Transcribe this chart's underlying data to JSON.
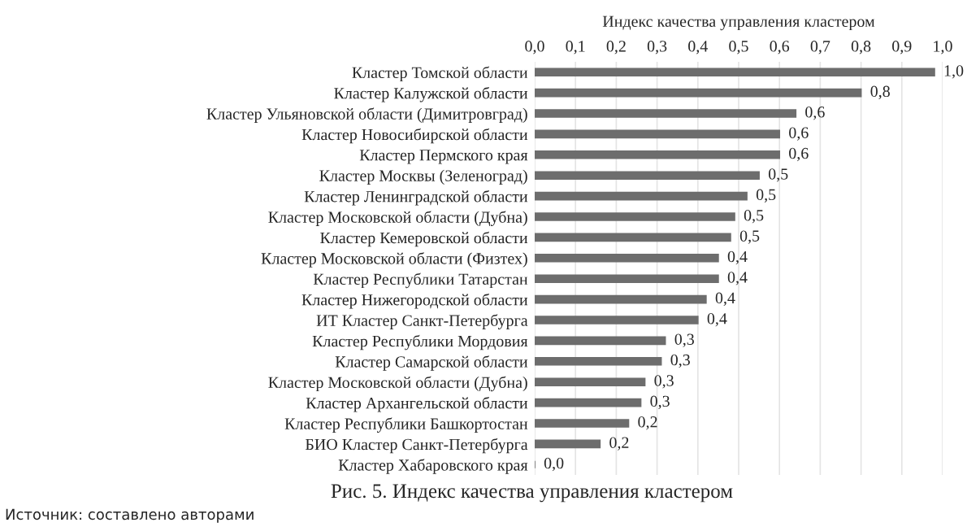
{
  "chart_data": {
    "type": "bar",
    "orientation": "horizontal",
    "title": "Рис. 5. Индекс качества управления кластером",
    "xlabel": "Индекс качества управления кластером",
    "categories": [
      "Кластер Томской области",
      "Кластер Калужской области",
      "Кластер Ульяновской области (Димитровград)",
      "Кластер Новосибирской области",
      "Кластер Пермского края",
      "Кластер Москвы (Зеленоград)",
      "Кластер Ленинградской области",
      "Кластер Московской области (Дубна)",
      "Кластер Кемеровской области",
      "Кластер Московской области (Физтех)",
      "Кластер Республики Татарстан",
      "Кластер Нижегородской области",
      "ИТ Кластер Санкт-Петербурга",
      "Кластер Республики Мордовия",
      "Кластер Самарской области",
      "Кластер Московской области (Дубна)",
      "Кластер Архангельской области",
      "Кластер Республики Башкортостан",
      "БИО Кластер Санкт-Петербурга",
      "Кластер Хабаровского края"
    ],
    "values": [
      0.98,
      0.8,
      0.64,
      0.6,
      0.6,
      0.55,
      0.52,
      0.49,
      0.48,
      0.45,
      0.45,
      0.42,
      0.4,
      0.32,
      0.31,
      0.27,
      0.26,
      0.23,
      0.16,
      0
    ],
    "value_labels": [
      "1,0",
      "0,8",
      "0,6",
      "0,6",
      "0,6",
      "0,5",
      "0,5",
      "0,5",
      "0,5",
      "0,4",
      "0,4",
      "0,4",
      "0,4",
      "0,3",
      "0,3",
      "0,3",
      "0,3",
      "0,2",
      "0,2",
      "0,0"
    ],
    "color": "#6d6d6d",
    "xlim": [
      0,
      1
    ],
    "xticks": [
      {
        "value": 0,
        "label": "0,0"
      },
      {
        "value": 0.1,
        "label": "0,1"
      },
      {
        "value": 0.2,
        "label": "0,2"
      },
      {
        "value": 0.3,
        "label": "0,3"
      },
      {
        "value": 0.4,
        "label": "0,4"
      },
      {
        "value": 0.5,
        "label": "0,5"
      },
      {
        "value": 0.6,
        "label": "0,6"
      },
      {
        "value": 0.7,
        "label": "0,7"
      },
      {
        "value": 0.8,
        "label": "0,8"
      },
      {
        "value": 0.9,
        "label": "0,9"
      },
      {
        "value": 1,
        "label": "1,0"
      }
    ],
    "grid": "x",
    "annotations": [
      "Источник: составлено авторами"
    ]
  }
}
